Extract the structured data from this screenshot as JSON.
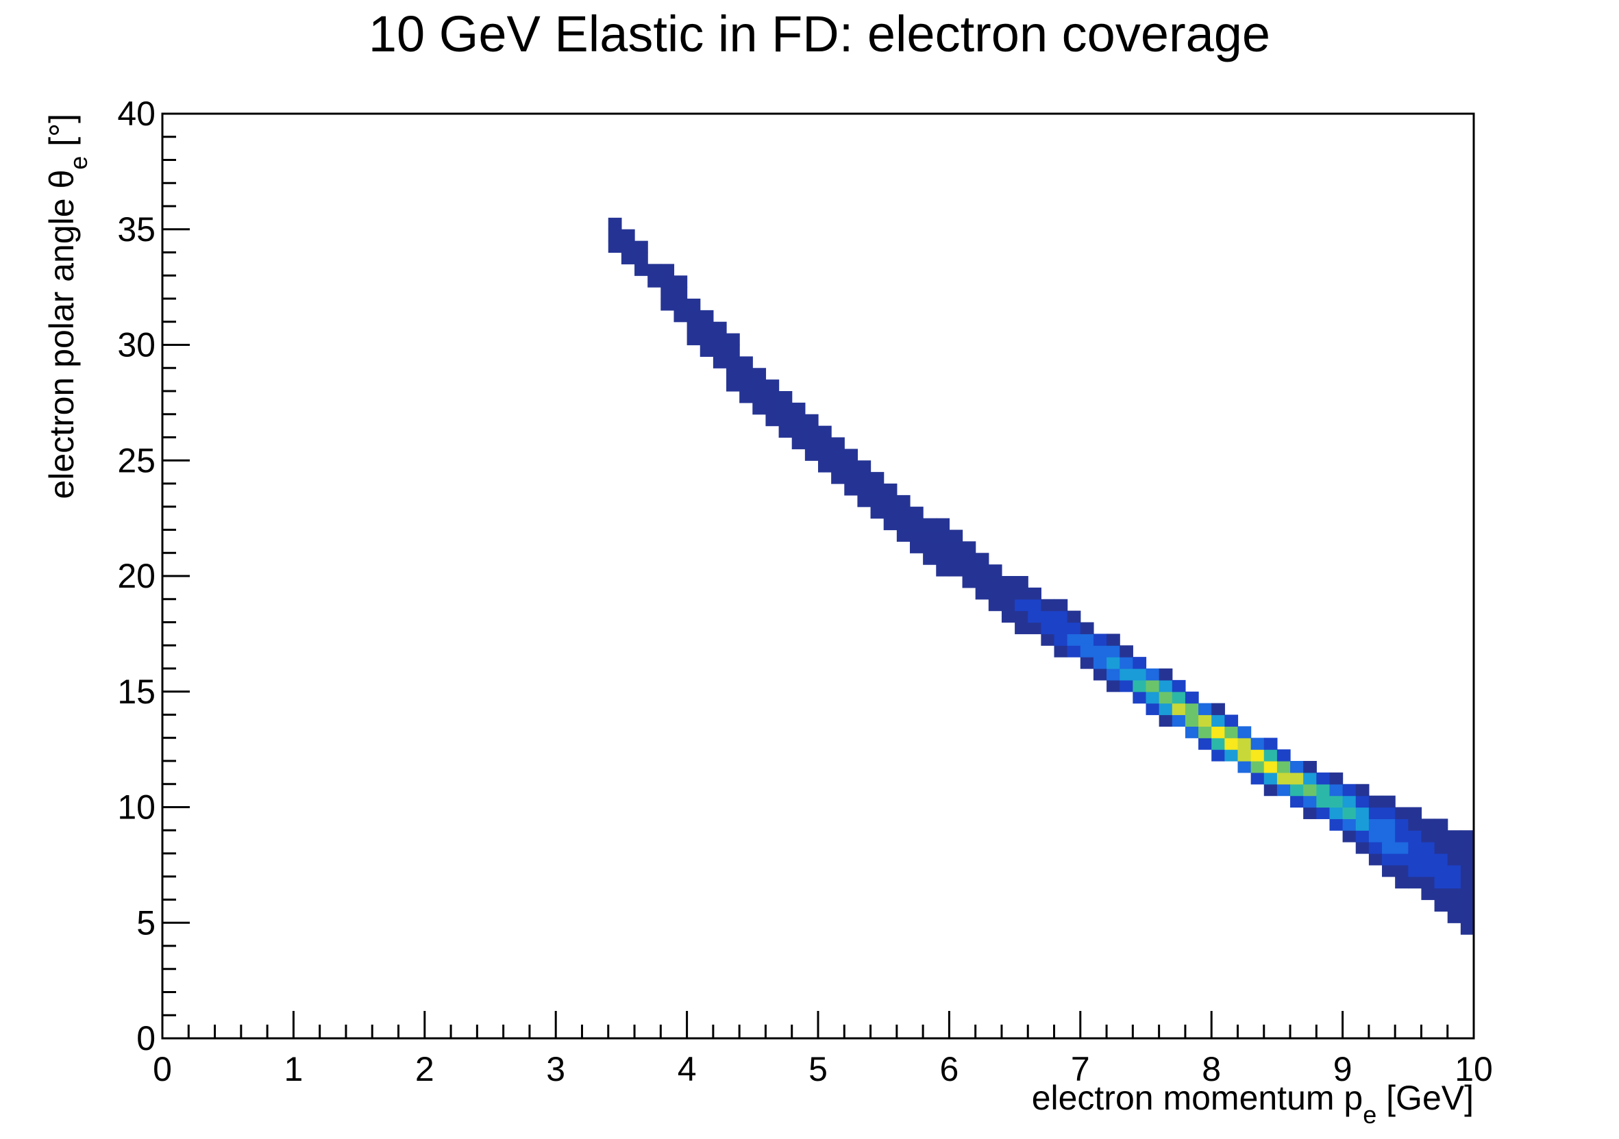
{
  "chart_data": {
    "type": "heatmap",
    "title": "10 GeV Elastic in FD: electron coverage",
    "xlabel": {
      "main": "electron momentum p",
      "sub": "e",
      "unit": " [GeV]"
    },
    "ylabel": {
      "main": "electron polar angle θ",
      "sub": "e",
      "unit": " [°]"
    },
    "xlim": [
      0,
      10
    ],
    "ylim": [
      0,
      40
    ],
    "x_ticks": [
      0,
      1,
      2,
      3,
      4,
      5,
      6,
      7,
      8,
      9,
      10
    ],
    "y_ticks": [
      0,
      5,
      10,
      15,
      20,
      25,
      30,
      35,
      40
    ],
    "x_tick_labels": [
      "0",
      "1",
      "2",
      "3",
      "4",
      "5",
      "6",
      "7",
      "8",
      "9",
      "10"
    ],
    "y_tick_labels": [
      "0",
      "5",
      "10",
      "15",
      "20",
      "25",
      "30",
      "35",
      "40"
    ],
    "bin_width_x": 0.1,
    "bin_width_y": 0.5,
    "band": {
      "description_points": [
        {
          "p": 3.45,
          "theta": 34.8
        },
        {
          "p": 4.0,
          "theta": 31.5
        },
        {
          "p": 4.5,
          "theta": 28.3
        },
        {
          "p": 5.0,
          "theta": 25.8
        },
        {
          "p": 5.5,
          "theta": 23.3
        },
        {
          "p": 6.0,
          "theta": 21.0
        },
        {
          "p": 6.5,
          "theta": 19.0
        },
        {
          "p": 7.0,
          "theta": 17.2
        },
        {
          "p": 7.5,
          "theta": 15.3
        },
        {
          "p": 8.0,
          "theta": 13.4
        },
        {
          "p": 8.5,
          "theta": 11.6
        },
        {
          "p": 9.0,
          "theta": 10.0
        },
        {
          "p": 9.5,
          "theta": 8.2
        },
        {
          "p": 10.0,
          "theta": 6.7
        }
      ],
      "peak": {
        "p": 8.2,
        "theta": 13.0
      }
    },
    "palette": [
      "#253494",
      "#1c42c8",
      "#1e6ae0",
      "#1a9cd8",
      "#2cb8a8",
      "#6cc46a",
      "#c8d838",
      "#f8e81c"
    ],
    "grid": false,
    "legend": "none"
  }
}
